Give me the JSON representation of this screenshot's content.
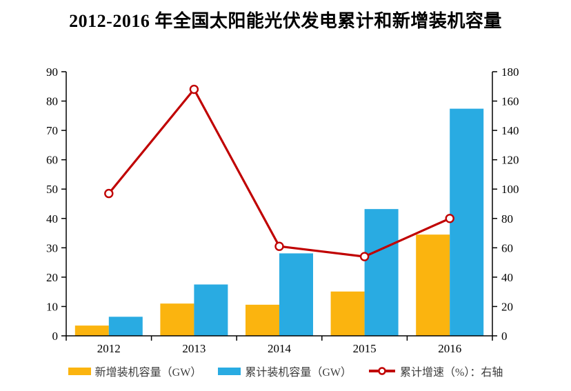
{
  "title": "2012-2016 年全国太阳能光伏发电累计和新增装机容量",
  "chart_data": {
    "type": "bar+line combo",
    "title": "2012-2016 年全国太阳能光伏发电累计和新增装机容量",
    "categories": [
      "2012",
      "2013",
      "2014",
      "2015",
      "2016"
    ],
    "series": [
      {
        "name": "新增装机容量（GW）",
        "type": "bar",
        "axis": "left",
        "color": "#FBB40F",
        "values": [
          3.5,
          11.0,
          10.6,
          15.1,
          34.5
        ]
      },
      {
        "name": "累计装机容量（GW）",
        "type": "bar",
        "axis": "left",
        "color": "#29ABE2",
        "values": [
          6.5,
          17.5,
          28.1,
          43.2,
          77.4
        ]
      },
      {
        "name": "累计增速（%）：右轴",
        "type": "line",
        "axis": "right",
        "color": "#C00000",
        "values": [
          97,
          168,
          61,
          54,
          80
        ]
      }
    ],
    "left_axis": {
      "min": 0,
      "max": 90,
      "step": 10,
      "ticks": [
        0,
        10,
        20,
        30,
        40,
        50,
        60,
        70,
        80,
        90
      ]
    },
    "right_axis": {
      "min": 0,
      "max": 180,
      "step": 20,
      "ticks": [
        0,
        20,
        40,
        60,
        80,
        100,
        120,
        140,
        160,
        180
      ]
    },
    "grid": false,
    "legend_position": "bottom"
  },
  "legend": [
    {
      "label": "新增装机容量（GW）",
      "swatch": "bar",
      "color": "#FBB40F"
    },
    {
      "label": "累计装机容量（GW）",
      "swatch": "bar",
      "color": "#29ABE2"
    },
    {
      "label": "累计增速（%）：右轴",
      "swatch": "line-marker",
      "color": "#C00000"
    }
  ],
  "colors": {
    "new_bar": "#FBB40F",
    "cumulative_bar": "#29ABE2",
    "growth_line": "#C00000",
    "axis": "#000000",
    "text": "#000000"
  }
}
